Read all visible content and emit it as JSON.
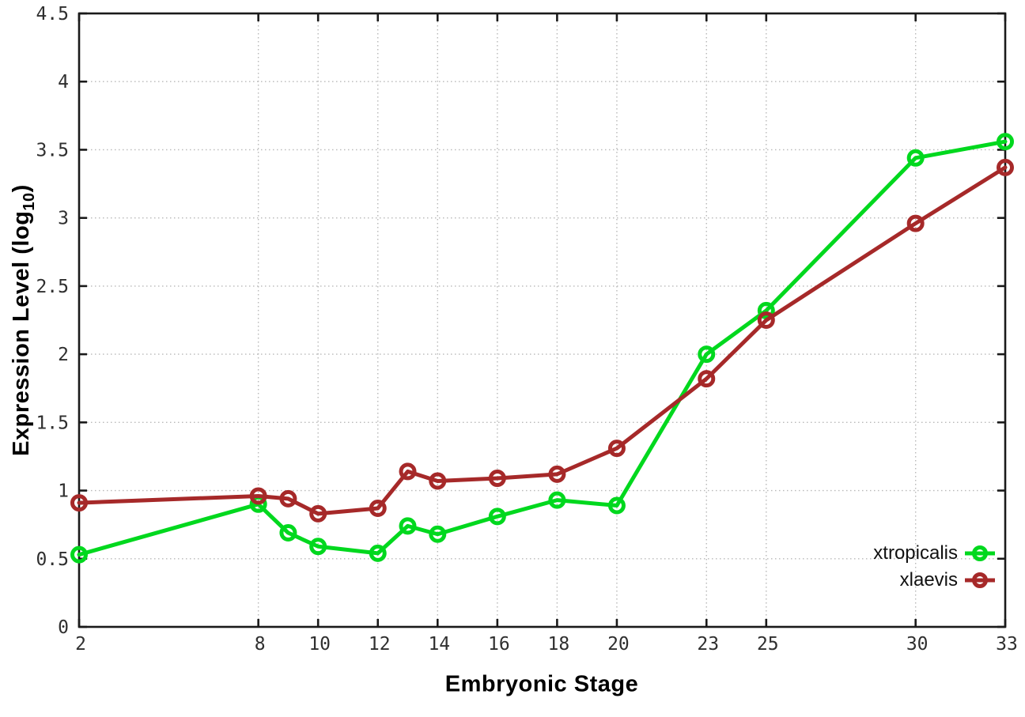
{
  "chart_data": {
    "type": "line",
    "title": "",
    "xlabel": "Embryonic Stage",
    "ylabel": "Expression Level (log10)",
    "xlim": [
      2,
      33
    ],
    "ylim": [
      0,
      4.5
    ],
    "grid": true,
    "legend_position": "inside-bottom-right",
    "x_tick_values": [
      2,
      8,
      10,
      12,
      14,
      16,
      18,
      20,
      23,
      25,
      30,
      33
    ],
    "x_tick_labels": [
      "2",
      "8",
      "10",
      "12",
      "14",
      "16",
      "18",
      "20",
      "23",
      "25",
      "30",
      "33"
    ],
    "y_tick_values": [
      0,
      0.5,
      1,
      1.5,
      2,
      2.5,
      3,
      3.5,
      4,
      4.5
    ],
    "y_tick_labels": [
      "0",
      "0.5",
      "1",
      "1.5",
      "2",
      "2.5",
      "3",
      "3.5",
      "4",
      "4.5"
    ],
    "x": [
      2,
      8,
      9,
      10,
      12,
      13,
      14,
      16,
      18,
      20,
      23,
      25,
      30,
      33
    ],
    "series": [
      {
        "name": "xtropicalis",
        "color": "#00d81e",
        "values": [
          0.53,
          0.9,
          0.69,
          0.59,
          0.54,
          0.74,
          0.68,
          0.81,
          0.93,
          0.89,
          2.0,
          2.32,
          3.44,
          3.56
        ]
      },
      {
        "name": "xlaevis",
        "color": "#a62929",
        "values": [
          0.91,
          0.96,
          0.94,
          0.83,
          0.87,
          1.14,
          1.07,
          1.09,
          1.12,
          1.31,
          1.82,
          2.25,
          2.96,
          3.37
        ]
      }
    ]
  },
  "labels": {
    "xlabel": "Embryonic Stage",
    "ylabel_prefix": "Expression Level (log",
    "ylabel_sub": "10",
    "ylabel_suffix": ")"
  },
  "styles": {
    "axis_color": "#1a1a1a",
    "grid_color": "#b8b8b8",
    "tick_label_color": "#2f2f2f",
    "background": "#ffffff"
  }
}
